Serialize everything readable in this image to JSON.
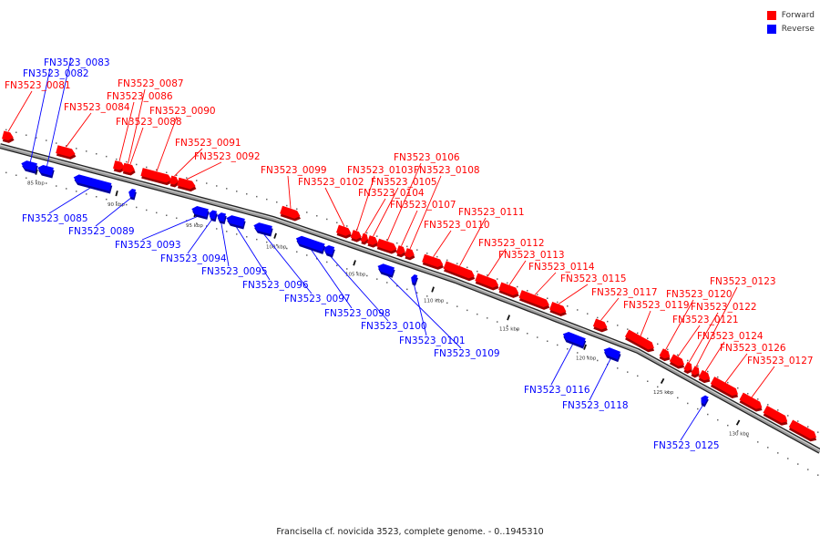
{
  "caption": "Francisella cf. novicida 3523, complete genome. - 0..1945310",
  "legend": {
    "items": [
      {
        "label": "Forward",
        "color": "#ff0000"
      },
      {
        "label": "Reverse",
        "color": "#0000ff"
      }
    ]
  },
  "colors": {
    "forward": "#ff0000",
    "reverse": "#0000ff",
    "backbone": "#777777"
  },
  "ticks": [
    {
      "label": "85 kbp"
    },
    {
      "label": "90 kbp"
    },
    {
      "label": "95 kbp"
    },
    {
      "label": "100 kbp"
    },
    {
      "label": "105 kbp"
    },
    {
      "label": "110 kbp"
    },
    {
      "label": "115 kbp"
    },
    {
      "label": "120 kbp"
    },
    {
      "label": "125 kbp"
    },
    {
      "label": "130 kbp"
    }
  ],
  "genes": [
    {
      "name": "FN3523_0081",
      "strand": "forward"
    },
    {
      "name": "FN3523_0082",
      "strand": "reverse"
    },
    {
      "name": "FN3523_0083",
      "strand": "reverse"
    },
    {
      "name": "FN3523_0084",
      "strand": "forward"
    },
    {
      "name": "FN3523_0085",
      "strand": "reverse"
    },
    {
      "name": "FN3523_0086",
      "strand": "forward"
    },
    {
      "name": "FN3523_0087",
      "strand": "forward"
    },
    {
      "name": "FN3523_0088",
      "strand": "forward"
    },
    {
      "name": "FN3523_0089",
      "strand": "reverse"
    },
    {
      "name": "FN3523_0090",
      "strand": "forward"
    },
    {
      "name": "FN3523_0091",
      "strand": "forward"
    },
    {
      "name": "FN3523_0092",
      "strand": "forward"
    },
    {
      "name": "FN3523_0093",
      "strand": "reverse"
    },
    {
      "name": "FN3523_0094",
      "strand": "reverse"
    },
    {
      "name": "FN3523_0095",
      "strand": "reverse"
    },
    {
      "name": "FN3523_0096",
      "strand": "reverse"
    },
    {
      "name": "FN3523_0097",
      "strand": "reverse"
    },
    {
      "name": "FN3523_0098",
      "strand": "reverse"
    },
    {
      "name": "FN3523_0099",
      "strand": "forward"
    },
    {
      "name": "FN3523_0100",
      "strand": "reverse"
    },
    {
      "name": "FN3523_0101",
      "strand": "reverse"
    },
    {
      "name": "FN3523_0102",
      "strand": "forward"
    },
    {
      "name": "FN3523_0103",
      "strand": "forward"
    },
    {
      "name": "FN3523_0104",
      "strand": "forward"
    },
    {
      "name": "FN3523_0105",
      "strand": "forward"
    },
    {
      "name": "FN3523_0106",
      "strand": "forward"
    },
    {
      "name": "FN3523_0107",
      "strand": "forward"
    },
    {
      "name": "FN3523_0108",
      "strand": "forward"
    },
    {
      "name": "FN3523_0109",
      "strand": "reverse"
    },
    {
      "name": "FN3523_0110",
      "strand": "forward"
    },
    {
      "name": "FN3523_0111",
      "strand": "forward"
    },
    {
      "name": "FN3523_0112",
      "strand": "forward"
    },
    {
      "name": "FN3523_0113",
      "strand": "forward"
    },
    {
      "name": "FN3523_0114",
      "strand": "forward"
    },
    {
      "name": "FN3523_0115",
      "strand": "forward"
    },
    {
      "name": "FN3523_0116",
      "strand": "reverse"
    },
    {
      "name": "FN3523_0117",
      "strand": "forward"
    },
    {
      "name": "FN3523_0118",
      "strand": "reverse"
    },
    {
      "name": "FN3523_0119",
      "strand": "forward"
    },
    {
      "name": "FN3523_0120",
      "strand": "forward"
    },
    {
      "name": "FN3523_0121",
      "strand": "forward"
    },
    {
      "name": "FN3523_0122",
      "strand": "forward"
    },
    {
      "name": "FN3523_0123",
      "strand": "forward"
    },
    {
      "name": "FN3523_0124",
      "strand": "forward"
    },
    {
      "name": "FN3523_0125",
      "strand": "reverse"
    },
    {
      "name": "FN3523_0126",
      "strand": "forward"
    },
    {
      "name": "FN3523_0127",
      "strand": "forward"
    }
  ]
}
